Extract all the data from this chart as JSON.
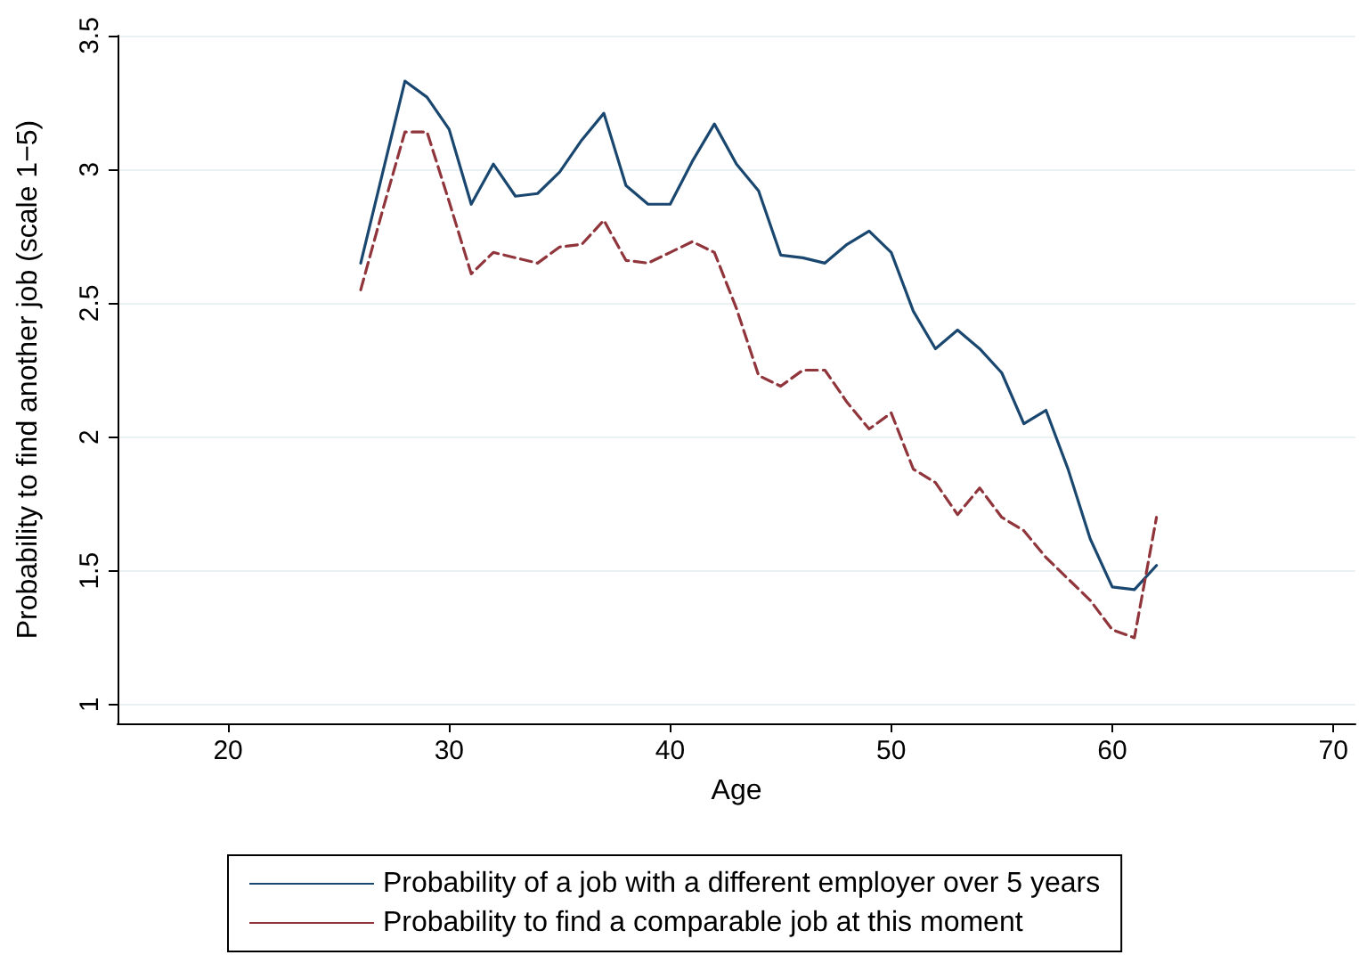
{
  "chart_data": {
    "type": "line",
    "xlabel": "Age",
    "ylabel": "Probability to find another job (scale 1−5)",
    "x": [
      26,
      27,
      28,
      29,
      30,
      31,
      32,
      33,
      34,
      35,
      36,
      37,
      38,
      39,
      40,
      41,
      42,
      43,
      44,
      45,
      46,
      47,
      48,
      49,
      50,
      51,
      52,
      53,
      54,
      55,
      56,
      57,
      58,
      59,
      60,
      61,
      62
    ],
    "series": [
      {
        "name": "Probability of a job with a different employer over 5 years",
        "color": "#1a476f",
        "line_style": "solid",
        "values": [
          2.65,
          2.99,
          3.33,
          3.27,
          3.15,
          2.87,
          3.02,
          2.9,
          2.91,
          2.99,
          3.11,
          3.21,
          2.94,
          2.87,
          2.87,
          3.03,
          3.17,
          3.02,
          2.92,
          2.68,
          2.67,
          2.65,
          2.72,
          2.77,
          2.69,
          2.47,
          2.33,
          2.4,
          2.33,
          2.24,
          2.05,
          2.1,
          1.88,
          1.62,
          1.44,
          1.43,
          1.52
        ]
      },
      {
        "name": "Probability to find a comparable job at this moment",
        "color": "#90353b",
        "line_style": "dashed",
        "values": [
          2.55,
          2.85,
          3.14,
          3.14,
          2.88,
          2.61,
          2.69,
          2.67,
          2.65,
          2.71,
          2.72,
          2.81,
          2.66,
          2.65,
          2.69,
          2.73,
          2.69,
          2.48,
          2.23,
          2.19,
          2.25,
          2.25,
          2.13,
          2.03,
          2.09,
          1.88,
          1.83,
          1.71,
          1.81,
          1.7,
          1.65,
          1.55,
          1.47,
          1.39,
          1.28,
          1.25,
          1.7
        ]
      }
    ],
    "xlim": [
      15,
      71
    ],
    "xticks": [
      20,
      30,
      40,
      50,
      60,
      70
    ],
    "ylim": [
      0.93,
      3.5
    ],
    "yticks": [
      1,
      1.5,
      2,
      2.5,
      3,
      3.5
    ],
    "grid": "y",
    "legend": "bottom",
    "marker": "none"
  }
}
